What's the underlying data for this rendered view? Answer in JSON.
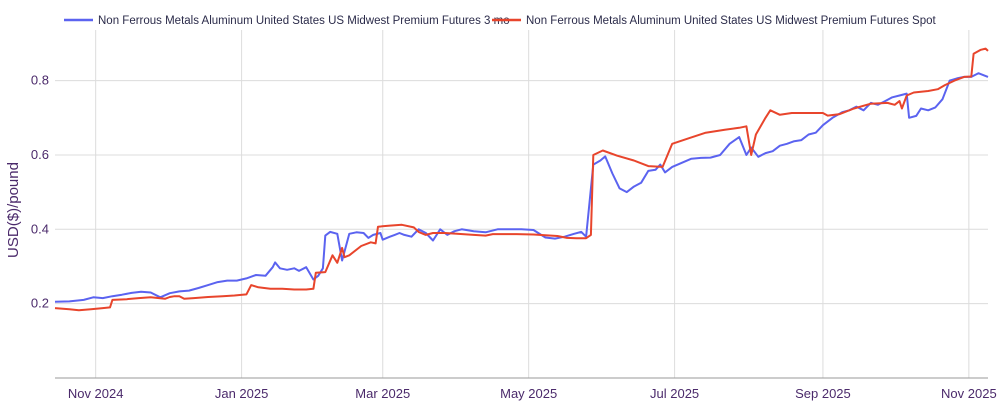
{
  "chart_data": {
    "type": "line",
    "title": "",
    "xlabel": "",
    "ylabel": "USD($)/pound",
    "ylim": [
      0,
      0.92
    ],
    "yticks": [
      0.2,
      0.4,
      0.6,
      0.8
    ],
    "ytick_labels": [
      "0.2",
      "0.4",
      "0.6",
      "0.8"
    ],
    "xlim_day": [
      0,
      390
    ],
    "xticks": [
      {
        "label": "Nov 2024",
        "day": 17
      },
      {
        "label": "Jan 2025",
        "day": 78
      },
      {
        "label": "Mar 2025",
        "day": 137
      },
      {
        "label": "May 2025",
        "day": 198
      },
      {
        "label": "Jul 2025",
        "day": 259
      },
      {
        "label": "Sep 2025",
        "day": 321
      },
      {
        "label": "Nov 2025",
        "day": 382
      }
    ],
    "grid": true,
    "legend_position": "top",
    "series": [
      {
        "name": "Non Ferrous Metals Aluminum United States US Midwest Premium Futures 3 mo",
        "color": "#5b63f0",
        "points": [
          [
            0,
            0.205
          ],
          [
            6,
            0.206
          ],
          [
            12,
            0.21
          ],
          [
            16,
            0.217
          ],
          [
            20,
            0.215
          ],
          [
            24,
            0.22
          ],
          [
            28,
            0.224
          ],
          [
            32,
            0.229
          ],
          [
            36,
            0.232
          ],
          [
            40,
            0.23
          ],
          [
            44,
            0.217
          ],
          [
            48,
            0.228
          ],
          [
            52,
            0.233
          ],
          [
            56,
            0.235
          ],
          [
            60,
            0.242
          ],
          [
            64,
            0.25
          ],
          [
            68,
            0.258
          ],
          [
            72,
            0.262
          ],
          [
            76,
            0.262
          ],
          [
            80,
            0.268
          ],
          [
            84,
            0.277
          ],
          [
            88,
            0.275
          ],
          [
            91,
            0.298
          ],
          [
            92,
            0.311
          ],
          [
            94,
            0.295
          ],
          [
            97,
            0.291
          ],
          [
            100,
            0.295
          ],
          [
            102,
            0.288
          ],
          [
            105,
            0.298
          ],
          [
            108,
            0.265
          ],
          [
            110,
            0.275
          ],
          [
            112,
            0.295
          ],
          [
            113,
            0.383
          ],
          [
            115,
            0.393
          ],
          [
            118,
            0.388
          ],
          [
            120,
            0.316
          ],
          [
            123,
            0.388
          ],
          [
            126,
            0.392
          ],
          [
            129,
            0.39
          ],
          [
            131,
            0.377
          ],
          [
            133,
            0.385
          ],
          [
            136,
            0.39
          ],
          [
            137,
            0.372
          ],
          [
            140,
            0.38
          ],
          [
            142,
            0.385
          ],
          [
            144,
            0.39
          ],
          [
            146,
            0.385
          ],
          [
            149,
            0.38
          ],
          [
            152,
            0.4
          ],
          [
            155,
            0.39
          ],
          [
            158,
            0.37
          ],
          [
            161,
            0.4
          ],
          [
            164,
            0.385
          ],
          [
            167,
            0.395
          ],
          [
            170,
            0.4
          ],
          [
            175,
            0.395
          ],
          [
            180,
            0.392
          ],
          [
            185,
            0.4
          ],
          [
            195,
            0.4
          ],
          [
            200,
            0.398
          ],
          [
            205,
            0.378
          ],
          [
            209,
            0.375
          ],
          [
            213,
            0.38
          ],
          [
            217,
            0.388
          ],
          [
            220,
            0.393
          ],
          [
            222,
            0.38
          ],
          [
            225,
            0.574
          ],
          [
            228,
            0.585
          ],
          [
            230,
            0.596
          ],
          [
            233,
            0.55
          ],
          [
            236,
            0.51
          ],
          [
            239,
            0.5
          ],
          [
            242,
            0.515
          ],
          [
            245,
            0.525
          ],
          [
            248,
            0.557
          ],
          [
            251,
            0.56
          ],
          [
            253,
            0.574
          ],
          [
            255,
            0.553
          ],
          [
            258,
            0.568
          ],
          [
            262,
            0.579
          ],
          [
            266,
            0.59
          ],
          [
            270,
            0.592
          ],
          [
            274,
            0.593
          ],
          [
            278,
            0.6
          ],
          [
            282,
            0.63
          ],
          [
            286,
            0.648
          ],
          [
            289,
            0.6
          ],
          [
            291,
            0.62
          ],
          [
            294,
            0.595
          ],
          [
            297,
            0.605
          ],
          [
            300,
            0.61
          ],
          [
            303,
            0.625
          ],
          [
            306,
            0.63
          ],
          [
            309,
            0.637
          ],
          [
            312,
            0.64
          ],
          [
            315,
            0.655
          ],
          [
            318,
            0.66
          ],
          [
            321,
            0.68
          ],
          [
            325,
            0.7
          ],
          [
            329,
            0.715
          ],
          [
            332,
            0.72
          ],
          [
            335,
            0.73
          ],
          [
            338,
            0.72
          ],
          [
            341,
            0.74
          ],
          [
            344,
            0.735
          ],
          [
            347,
            0.745
          ],
          [
            350,
            0.755
          ],
          [
            353,
            0.76
          ],
          [
            356,
            0.765
          ],
          [
            357,
            0.7
          ],
          [
            360,
            0.705
          ],
          [
            362,
            0.725
          ],
          [
            365,
            0.72
          ],
          [
            368,
            0.728
          ],
          [
            371,
            0.75
          ],
          [
            374,
            0.8
          ],
          [
            377,
            0.806
          ],
          [
            380,
            0.81
          ],
          [
            383,
            0.81
          ],
          [
            386,
            0.82
          ],
          [
            390,
            0.81
          ]
        ]
      },
      {
        "name": "Non Ferrous Metals Aluminum United States US Midwest Premium Futures Spot",
        "color": "#e8452c",
        "points": [
          [
            0,
            0.188
          ],
          [
            6,
            0.185
          ],
          [
            10,
            0.182
          ],
          [
            15,
            0.185
          ],
          [
            20,
            0.188
          ],
          [
            23,
            0.19
          ],
          [
            24,
            0.21
          ],
          [
            30,
            0.212
          ],
          [
            35,
            0.215
          ],
          [
            40,
            0.217
          ],
          [
            46,
            0.213
          ],
          [
            48,
            0.218
          ],
          [
            50,
            0.22
          ],
          [
            52,
            0.22
          ],
          [
            54,
            0.213
          ],
          [
            58,
            0.215
          ],
          [
            64,
            0.218
          ],
          [
            70,
            0.22
          ],
          [
            75,
            0.222
          ],
          [
            80,
            0.225
          ],
          [
            82,
            0.25
          ],
          [
            85,
            0.244
          ],
          [
            90,
            0.24
          ],
          [
            95,
            0.24
          ],
          [
            100,
            0.238
          ],
          [
            105,
            0.238
          ],
          [
            108,
            0.24
          ],
          [
            109,
            0.283
          ],
          [
            113,
            0.285
          ],
          [
            116,
            0.33
          ],
          [
            118,
            0.31
          ],
          [
            120,
            0.35
          ],
          [
            121,
            0.325
          ],
          [
            123,
            0.33
          ],
          [
            128,
            0.355
          ],
          [
            132,
            0.365
          ],
          [
            134,
            0.362
          ],
          [
            135,
            0.407
          ],
          [
            140,
            0.41
          ],
          [
            145,
            0.412
          ],
          [
            150,
            0.405
          ],
          [
            152,
            0.393
          ],
          [
            155,
            0.385
          ],
          [
            158,
            0.39
          ],
          [
            163,
            0.39
          ],
          [
            168,
            0.388
          ],
          [
            175,
            0.385
          ],
          [
            180,
            0.383
          ],
          [
            183,
            0.387
          ],
          [
            188,
            0.387
          ],
          [
            193,
            0.387
          ],
          [
            200,
            0.386
          ],
          [
            205,
            0.384
          ],
          [
            210,
            0.382
          ],
          [
            214,
            0.377
          ],
          [
            218,
            0.376
          ],
          [
            222,
            0.376
          ],
          [
            224,
            0.385
          ],
          [
            225,
            0.6
          ],
          [
            229,
            0.612
          ],
          [
            235,
            0.598
          ],
          [
            242,
            0.585
          ],
          [
            248,
            0.57
          ],
          [
            254,
            0.568
          ],
          [
            258,
            0.63
          ],
          [
            265,
            0.645
          ],
          [
            272,
            0.66
          ],
          [
            280,
            0.668
          ],
          [
            286,
            0.673
          ],
          [
            289,
            0.677
          ],
          [
            291,
            0.6
          ],
          [
            293,
            0.655
          ],
          [
            297,
            0.7
          ],
          [
            299,
            0.72
          ],
          [
            303,
            0.708
          ],
          [
            308,
            0.713
          ],
          [
            315,
            0.713
          ],
          [
            321,
            0.713
          ],
          [
            323,
            0.706
          ],
          [
            328,
            0.71
          ],
          [
            334,
            0.725
          ],
          [
            341,
            0.738
          ],
          [
            348,
            0.74
          ],
          [
            351,
            0.735
          ],
          [
            353,
            0.745
          ],
          [
            354,
            0.725
          ],
          [
            356,
            0.76
          ],
          [
            359,
            0.768
          ],
          [
            362,
            0.77
          ],
          [
            365,
            0.772
          ],
          [
            369,
            0.777
          ],
          [
            372,
            0.788
          ],
          [
            376,
            0.8
          ],
          [
            380,
            0.81
          ],
          [
            383,
            0.811
          ],
          [
            384,
            0.872
          ],
          [
            387,
            0.883
          ],
          [
            389,
            0.886
          ],
          [
            390,
            0.88
          ]
        ]
      }
    ]
  }
}
